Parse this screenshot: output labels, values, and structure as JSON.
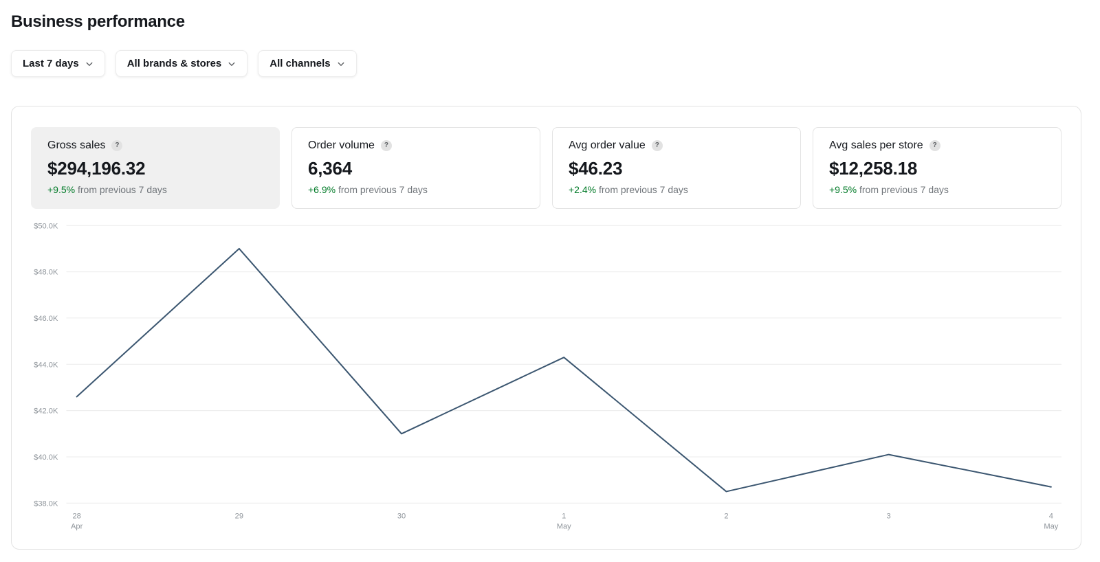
{
  "page": {
    "title": "Business performance"
  },
  "filters": [
    {
      "label": "Last 7 days"
    },
    {
      "label": "All brands & stores"
    },
    {
      "label": "All channels"
    }
  ],
  "metrics": [
    {
      "label": "Gross sales",
      "help": "?",
      "value": "$294,196.32",
      "delta": "+9.5%",
      "delta_suffix": "from previous 7 days",
      "selected": true
    },
    {
      "label": "Order volume",
      "help": "?",
      "value": "6,364",
      "delta": "+6.9%",
      "delta_suffix": "from previous 7 days",
      "selected": false
    },
    {
      "label": "Avg order value",
      "help": "?",
      "value": "$46.23",
      "delta": "+2.4%",
      "delta_suffix": "from previous 7 days",
      "selected": false
    },
    {
      "label": "Avg sales per store",
      "help": "?",
      "value": "$12,258.18",
      "delta": "+9.5%",
      "delta_suffix": "from previous 7 days",
      "selected": false
    }
  ],
  "chart_data": {
    "type": "line",
    "series_name": "Gross sales",
    "categories": [
      "28",
      "29",
      "30",
      "1",
      "2",
      "3",
      "4"
    ],
    "sub_labels": [
      "Apr",
      "",
      "",
      "May",
      "",
      "",
      "May"
    ],
    "values": [
      42.6,
      49.0,
      41.0,
      44.3,
      38.5,
      40.1,
      38.7
    ],
    "value_unit": "thousand USD",
    "ylim": [
      38,
      50
    ],
    "yticks": [
      {
        "v": 50,
        "label": "$50.0K"
      },
      {
        "v": 48,
        "label": "$48.0K"
      },
      {
        "v": 46,
        "label": "$46.0K"
      },
      {
        "v": 44,
        "label": "$44.0K"
      },
      {
        "v": 42,
        "label": "$42.0K"
      },
      {
        "v": 40,
        "label": "$40.0K"
      },
      {
        "v": 38,
        "label": "$38.0K"
      }
    ],
    "grid": true,
    "legend": false,
    "line_color": "#3b5670",
    "grid_color": "#ebebeb",
    "tick_color": "#8f959b"
  }
}
